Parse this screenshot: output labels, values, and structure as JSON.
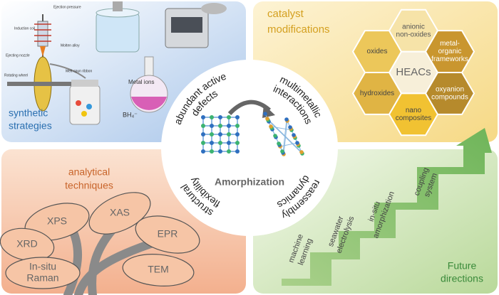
{
  "synthetic_strategies": {
    "title": [
      "synthetic",
      "strategies"
    ],
    "apparatus_labels": [
      "Ejection pressure",
      "Induction coil",
      "Molten alloy",
      "Ejecting nozzle",
      "Rotating wheel",
      "Melt-spun ribbon"
    ],
    "reagent_labels": [
      "Metal ions",
      "BH₄⁻"
    ]
  },
  "catalyst_modifications": {
    "title": [
      "catalyst",
      "modifications"
    ],
    "center": "HEACs",
    "hexagons": [
      [
        "oxides"
      ],
      [
        "anionic",
        "non-oxides"
      ],
      [
        "metal-",
        "organic",
        "frameworks"
      ],
      [
        "hydroxides"
      ],
      [
        "oxyanion",
        "compounds"
      ],
      [
        "nano",
        "composites"
      ]
    ]
  },
  "center": {
    "title": "Amorphization",
    "features": [
      [
        "abundant active",
        "defects"
      ],
      [
        "multimetallic",
        "interactions"
      ],
      [
        "reassembly",
        "dynamics"
      ],
      [
        "structural",
        "flexibility"
      ]
    ]
  },
  "analytical_techniques": {
    "title": [
      "analytical",
      "techniques"
    ],
    "methods": [
      [
        "XPS"
      ],
      [
        "XAS"
      ],
      [
        "XRD"
      ],
      [
        "EPR"
      ],
      [
        "In-situ",
        "Raman"
      ],
      [
        "TEM"
      ]
    ]
  },
  "future_directions": {
    "title": [
      "Future",
      "directions"
    ],
    "steps": [
      [
        "machine",
        "learning"
      ],
      [
        "seawater",
        "electrolysis"
      ],
      [
        "in-situ",
        "amorphization"
      ],
      [
        "coupling",
        "system"
      ]
    ]
  }
}
